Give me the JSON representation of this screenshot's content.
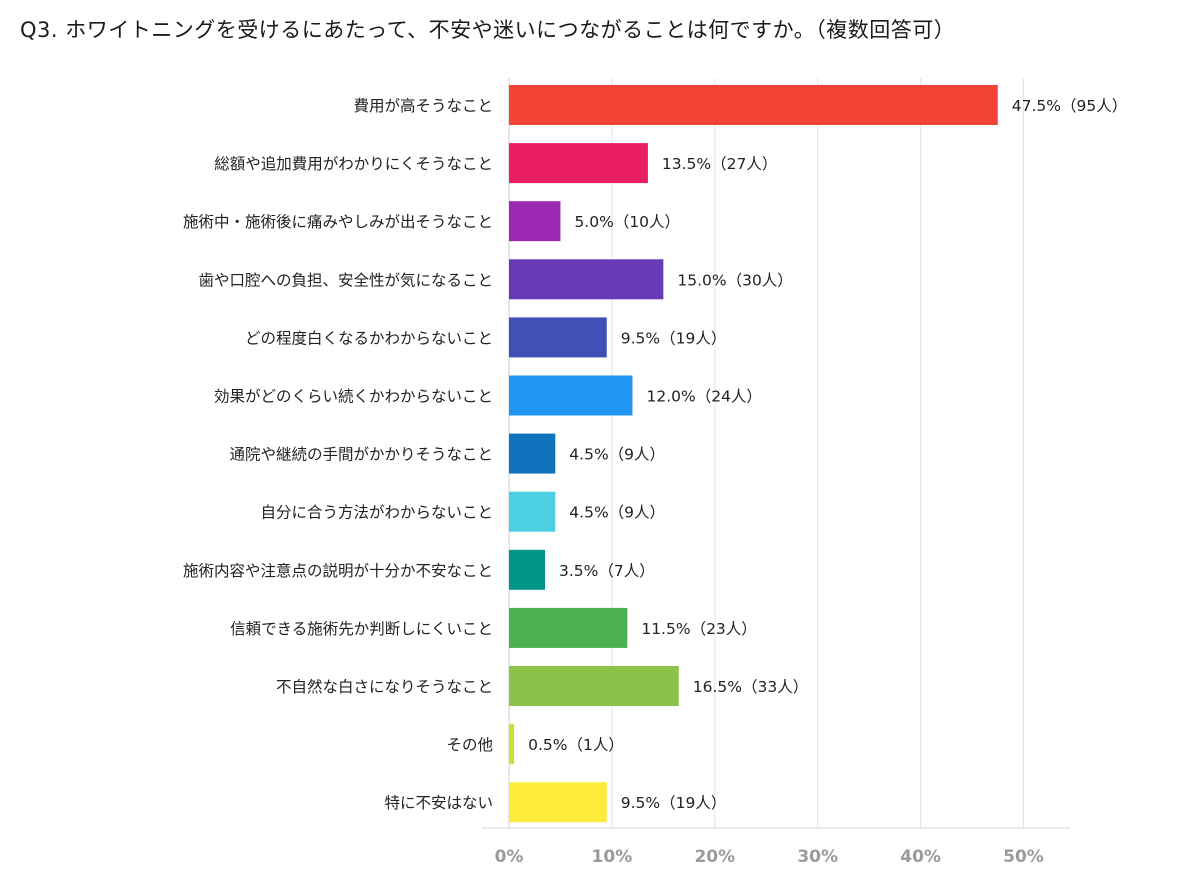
{
  "chart_data": {
    "type": "bar",
    "orientation": "horizontal",
    "title": "Q3. ホワイトニングを受けるにあたって、不安や迷いにつながることは何ですか。（複数回答可）",
    "xlim": [
      0,
      50
    ],
    "ticks": [
      "0%",
      "10%",
      "20%",
      "30%",
      "40%",
      "50%"
    ],
    "tick_values": [
      0,
      10,
      20,
      30,
      40,
      50
    ],
    "grid": true,
    "legend": "none",
    "categories": [
      "費用が高そうなこと",
      "総額や追加費用がわかりにくそうなこと",
      "施術中・施術後に痛みやしみが出そうなこと",
      "歯や口腔への負担、安全性が気になること",
      "どの程度白くなるかわからないこと",
      "効果がどのくらい続くかわからないこと",
      "通院や継続の手間がかかりそうなこと",
      "自分に合う方法がわからないこと",
      "施術内容や注意点の説明が十分か不安なこと",
      "信頼できる施術先か判断しにくいこと",
      "不自然な白さになりそうなこと",
      "その他",
      "特に不安はない"
    ],
    "values": [
      47.5,
      13.5,
      5.0,
      15.0,
      9.5,
      12.0,
      4.5,
      4.5,
      3.5,
      11.5,
      16.5,
      0.5,
      9.5
    ],
    "value_labels": [
      "47.5%（95人）",
      "13.5%（27人）",
      "5.0%（10人）",
      "15.0%（30人）",
      "9.5%（19人）",
      "12.0%（24人）",
      "4.5%（9人）",
      "4.5%（9人）",
      "3.5%（7人）",
      "11.5%（23人）",
      "16.5%（33人）",
      "0.5%（1人）",
      "9.5%（19人）"
    ],
    "colors": [
      "#f44336",
      "#e91e63",
      "#9c27b0",
      "#673ab7",
      "#3f51b5",
      "#2196f3",
      "#0f74bd",
      "#4dd0e1",
      "#009688",
      "#4caf50",
      "#8bc34a",
      "#cddc39",
      "#ffeb3b"
    ]
  }
}
